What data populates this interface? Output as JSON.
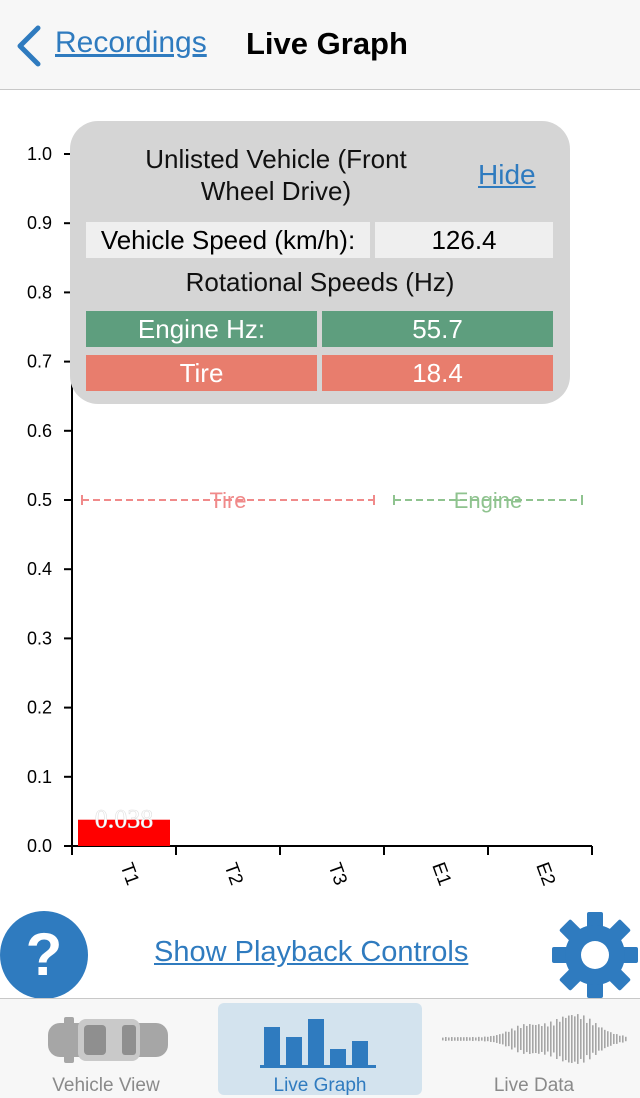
{
  "nav": {
    "back_label": "Recordings",
    "title": "Live Graph"
  },
  "panel": {
    "vehicle_name": "Unlisted Vehicle (Front Wheel Drive)",
    "hide_label": "Hide",
    "speed_label": "Vehicle Speed (km/h):",
    "speed_value": "126.4",
    "rotational_title": "Rotational Speeds (Hz)",
    "engine_label": "Engine Hz:",
    "engine_value": "55.7",
    "tire_label": "Tire",
    "tire_value": "18.4"
  },
  "chart_data": {
    "type": "bar",
    "categories": [
      "T1",
      "T2",
      "T3",
      "E1",
      "E2"
    ],
    "values": [
      0.038,
      0,
      0,
      0,
      0
    ],
    "data_labels": [
      "0.038",
      "",
      "",
      "",
      ""
    ],
    "ylim": [
      0,
      1.0
    ],
    "yticks": [
      "0.0",
      "0.1",
      "0.2",
      "0.3",
      "0.4",
      "0.5",
      "0.6",
      "0.7",
      "0.8",
      "0.9",
      "1.0"
    ],
    "reference_lines": [
      {
        "label": "Tire",
        "y": 0.5,
        "from": "T1",
        "to": "T3",
        "color": "#f08a8a"
      },
      {
        "label": "Engine",
        "y": 0.5,
        "from": "E1",
        "to": "E2",
        "color": "#8fc38f"
      }
    ],
    "bar_color": "#ff0000"
  },
  "controls": {
    "help_label": "?",
    "playback_label": "Show Playback Controls"
  },
  "tabs": [
    {
      "label": "Vehicle View",
      "active": false
    },
    {
      "label": "Live Graph",
      "active": true
    },
    {
      "label": "Live Data",
      "active": false
    }
  ],
  "colors": {
    "accent": "#2f7bbf",
    "engine": "#5e9e7e",
    "tire": "#e87d6d"
  }
}
